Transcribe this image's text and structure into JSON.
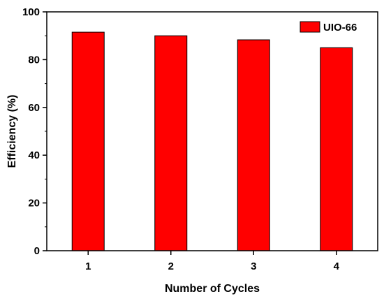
{
  "chart_data": {
    "type": "bar",
    "categories": [
      "1",
      "2",
      "3",
      "4"
    ],
    "series": [
      {
        "name": "UIO-66",
        "values": [
          91.5,
          90.0,
          88.3,
          85.0
        ]
      }
    ],
    "xlabel": "Number of Cycles",
    "ylabel": "Efficiency (%)",
    "ylim": [
      0,
      100
    ],
    "yticks": [
      "0",
      "20",
      "40",
      "60",
      "80",
      "100"
    ],
    "grid": false,
    "legend_position": "top-right",
    "colors": {
      "bar": "#ff0000",
      "bar_edge": "#000000",
      "axis": "#000000"
    }
  }
}
